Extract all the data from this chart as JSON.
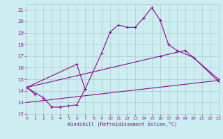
{
  "xlabel": "Windchill (Refroidissement éolien,°C)",
  "xlim": [
    0,
    23
  ],
  "ylim": [
    12,
    21.5
  ],
  "yticks": [
    12,
    13,
    14,
    15,
    16,
    17,
    18,
    19,
    20,
    21
  ],
  "xticks": [
    0,
    1,
    2,
    3,
    4,
    5,
    6,
    7,
    8,
    9,
    10,
    11,
    12,
    13,
    14,
    15,
    16,
    17,
    18,
    19,
    20,
    21,
    22,
    23
  ],
  "bg_color": "#cceef0",
  "grid_color": "#aacccc",
  "line_color": "#990099",
  "line1_x": [
    0,
    1
  ],
  "line1_y": [
    14.3,
    13.7
  ],
  "line2_x": [
    0,
    2,
    3,
    4,
    5,
    6,
    7
  ],
  "line2_y": [
    14.3,
    13.4,
    12.6,
    12.6,
    12.7,
    12.8,
    14.15
  ],
  "line3_x": [
    0,
    6,
    7,
    9,
    10,
    11,
    12,
    13,
    14,
    15,
    16,
    17,
    18,
    20,
    23
  ],
  "line3_y": [
    14.3,
    16.3,
    14.15,
    17.3,
    19.1,
    19.7,
    19.5,
    19.5,
    20.3,
    21.2,
    20.1,
    18.0,
    17.5,
    16.9,
    14.8
  ],
  "line4_x": [
    0,
    16,
    19,
    23
  ],
  "line4_y": [
    14.3,
    17.0,
    17.5,
    15.0
  ],
  "line5_x": [
    0,
    23
  ],
  "line5_y": [
    13.0,
    14.9
  ]
}
